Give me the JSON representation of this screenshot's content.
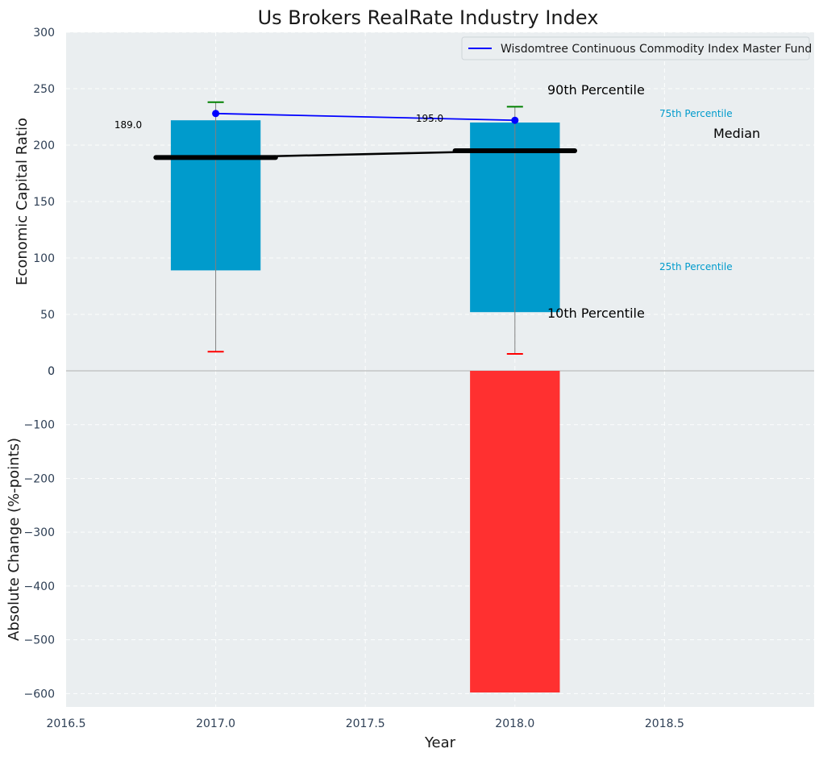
{
  "chart_data": {
    "type": "bar",
    "title": "Us Brokers RealRate Industry Index",
    "xlabel": "Year",
    "xlim": [
      2016.5,
      2019.0
    ],
    "x_ticks": [
      2016.5,
      2017.0,
      2017.5,
      2018.0,
      2018.5
    ],
    "x_tick_labels": [
      "2016.5",
      "2017.0",
      "2017.5",
      "2018.0",
      "2018.5"
    ],
    "colors": {
      "plot_bg": "#eaeef0",
      "box": "#009bcc",
      "fund_line": "#0000ff",
      "median": "#000000",
      "p90_cap": "#008000",
      "p10_cap": "#ff0000",
      "whisker": "#808080",
      "change_bar": "#ff3030",
      "percentile_label_small": "#009bcc"
    },
    "top_panel": {
      "ylabel": "Economic Capital Ratio",
      "ylim": [
        0,
        300
      ],
      "y_ticks": [
        0,
        50,
        100,
        150,
        200,
        250,
        300
      ],
      "y_tick_labels": [
        "0",
        "50",
        "100",
        "150",
        "200",
        "250",
        "300"
      ],
      "years": [
        2017.0,
        2018.0
      ],
      "p10": [
        17,
        15
      ],
      "p25": [
        89,
        52
      ],
      "median": [
        189,
        195
      ],
      "p75": [
        222,
        220
      ],
      "p90": [
        238,
        234
      ],
      "median_labels": [
        "189.0",
        "195.0"
      ],
      "series": [
        {
          "name": "Wisdomtree Continuous Commodity Index Master Fund",
          "x": [
            2017.0,
            2018.0
          ],
          "values": [
            228,
            222
          ]
        }
      ],
      "legend_label": "Wisdomtree Continuous Commodity Index Master Fund",
      "legend_position": "top-right",
      "annotations": {
        "p90": "90th Percentile",
        "p75": "75th Percentile",
        "median": "Median",
        "p25": "25th Percentile",
        "p10": "10th Percentile"
      }
    },
    "bottom_panel": {
      "ylabel": "Absolute Change (%-points)",
      "ylim": [
        -625,
        0
      ],
      "y_ticks": [
        0,
        -100,
        -200,
        -300,
        -400,
        -500,
        -600
      ],
      "y_tick_labels": [
        "0",
        "−100",
        "−200",
        "−300",
        "−400",
        "−500",
        "−600"
      ],
      "years": [
        2018.0
      ],
      "values": [
        -598
      ]
    }
  }
}
